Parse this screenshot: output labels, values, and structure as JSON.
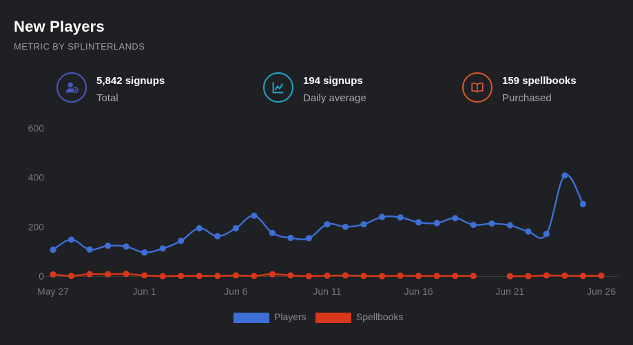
{
  "header": {
    "title": "New Players",
    "subtitle": "METRIC BY SPLINTERLANDS"
  },
  "stats": [
    {
      "value": "5,842 signups",
      "label": "Total",
      "icon": "add-user-icon",
      "color": "#4b57c7"
    },
    {
      "value": "194 signups",
      "label": "Daily average",
      "icon": "line-chart-icon",
      "color": "#22a7c8"
    },
    {
      "value": "159 spellbooks",
      "label": "Purchased",
      "icon": "open-book-icon",
      "color": "#e2572f"
    }
  ],
  "colors": {
    "background": "#1f2023",
    "players": "#3d6fd6",
    "spellbooks": "#d9371a",
    "axis": "#3a3c41"
  },
  "chart_data": {
    "type": "line",
    "title": "",
    "xlabel": "",
    "ylabel": "",
    "x": [
      "May 27",
      "May 28",
      "May 29",
      "May 30",
      "May 31",
      "Jun 1",
      "Jun 2",
      "Jun 3",
      "Jun 4",
      "Jun 5",
      "Jun 6",
      "Jun 7",
      "Jun 8",
      "Jun 9",
      "Jun 10",
      "Jun 11",
      "Jun 12",
      "Jun 13",
      "Jun 14",
      "Jun 15",
      "Jun 16",
      "Jun 17",
      "Jun 18",
      "Jun 19",
      "Jun 20",
      "Jun 21",
      "Jun 22",
      "Jun 23",
      "Jun 24",
      "Jun 25",
      "Jun 26"
    ],
    "x_tick_labels": [
      "May 27",
      "Jun 1",
      "Jun 6",
      "Jun 11",
      "Jun 16",
      "Jun 21",
      "Jun 26"
    ],
    "y_ticks": [
      0,
      200,
      400,
      600
    ],
    "ylim": [
      0,
      600
    ],
    "series": [
      {
        "name": "Players",
        "values": [
          107,
          148,
          108,
          123,
          120,
          96,
          112,
          143,
          194,
          162,
          194,
          245,
          175,
          155,
          154,
          210,
          200,
          210,
          240,
          238,
          218,
          215,
          235,
          208,
          213,
          206,
          181,
          171,
          408,
          292,
          null
        ]
      },
      {
        "name": "Spellbooks",
        "values": [
          7,
          1,
          8,
          8,
          9,
          3,
          0,
          1,
          1,
          1,
          3,
          1,
          8,
          3,
          0,
          2,
          3,
          1,
          0,
          2,
          1,
          1,
          1,
          1,
          null,
          0,
          0,
          3,
          2,
          1,
          2
        ]
      }
    ],
    "legend_position": "bottom-center",
    "grid": false
  }
}
